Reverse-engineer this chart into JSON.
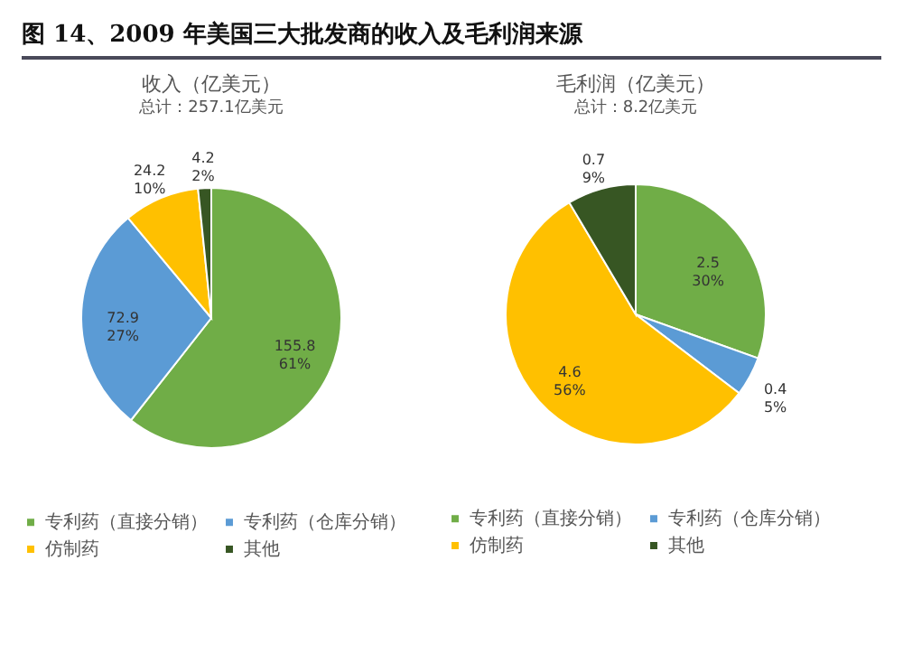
{
  "chart_data": [
    {
      "type": "pie",
      "title": "收入（亿美元）",
      "subtitle": "总计：257.1亿美元",
      "annotations": [
        "图 14、2009 年美国三大批发商的收入及毛利润来源"
      ],
      "categories": [
        "专利药（直接分销）",
        "专利药（仓库分销）",
        "仿制药",
        "其他"
      ],
      "values": [
        155.8,
        72.9,
        24.2,
        4.2
      ],
      "colors": [
        "#70ad47",
        "#5b9bd5",
        "#ffc000",
        "#375623"
      ],
      "value_labels": [
        "155.8\n61%",
        "72.9\n27%",
        "24.2\n10%",
        "4.2\n2%"
      ],
      "legend": "bottom"
    },
    {
      "type": "pie",
      "title": "毛利润（亿美元）",
      "subtitle": "总计：8.2亿美元",
      "categories": [
        "专利药（直接分销）",
        "专利药（仓库分销）",
        "仿制药",
        "其他"
      ],
      "values": [
        2.5,
        0.4,
        4.6,
        0.7
      ],
      "colors": [
        "#70ad47",
        "#5b9bd5",
        "#ffc000",
        "#375623"
      ],
      "value_labels": [
        "2.5\n30%",
        "0.4\n5%",
        "4.6\n56%",
        "0.7\n9%"
      ],
      "legend": "bottom"
    }
  ]
}
